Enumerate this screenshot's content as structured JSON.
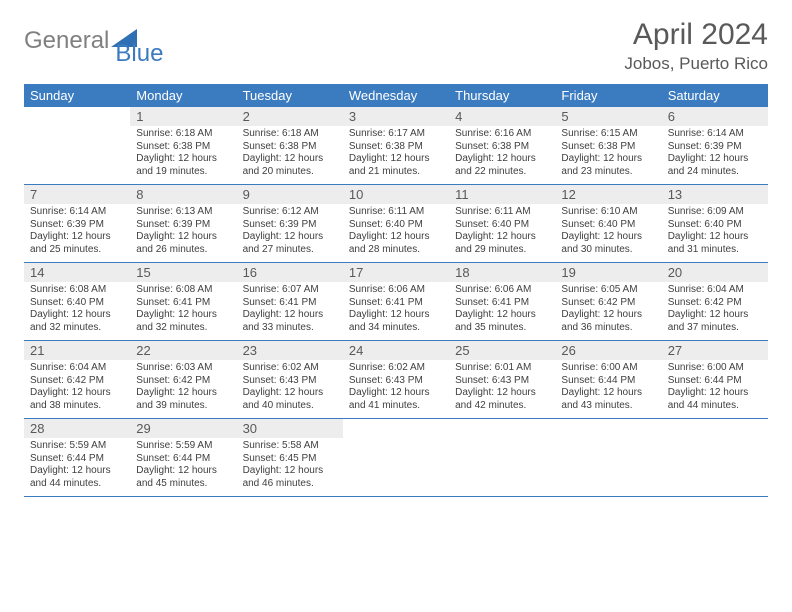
{
  "brand": {
    "text1": "General",
    "text2": "Blue"
  },
  "title": "April 2024",
  "location": "Jobos, Puerto Rico",
  "colors": {
    "header_bg": "#3b7bbf",
    "header_text": "#ffffff",
    "daynum_bg": "#ededed",
    "text_gray": "#595959",
    "body_text": "#404040",
    "rule": "#3b7bbf"
  },
  "daysOfWeek": [
    "Sunday",
    "Monday",
    "Tuesday",
    "Wednesday",
    "Thursday",
    "Friday",
    "Saturday"
  ],
  "weeks": [
    [
      {
        "n": "",
        "sunrise": "",
        "sunset": "",
        "daylight": ""
      },
      {
        "n": "1",
        "sunrise": "6:18 AM",
        "sunset": "6:38 PM",
        "daylight": "12 hours and 19 minutes."
      },
      {
        "n": "2",
        "sunrise": "6:18 AM",
        "sunset": "6:38 PM",
        "daylight": "12 hours and 20 minutes."
      },
      {
        "n": "3",
        "sunrise": "6:17 AM",
        "sunset": "6:38 PM",
        "daylight": "12 hours and 21 minutes."
      },
      {
        "n": "4",
        "sunrise": "6:16 AM",
        "sunset": "6:38 PM",
        "daylight": "12 hours and 22 minutes."
      },
      {
        "n": "5",
        "sunrise": "6:15 AM",
        "sunset": "6:38 PM",
        "daylight": "12 hours and 23 minutes."
      },
      {
        "n": "6",
        "sunrise": "6:14 AM",
        "sunset": "6:39 PM",
        "daylight": "12 hours and 24 minutes."
      }
    ],
    [
      {
        "n": "7",
        "sunrise": "6:14 AM",
        "sunset": "6:39 PM",
        "daylight": "12 hours and 25 minutes."
      },
      {
        "n": "8",
        "sunrise": "6:13 AM",
        "sunset": "6:39 PM",
        "daylight": "12 hours and 26 minutes."
      },
      {
        "n": "9",
        "sunrise": "6:12 AM",
        "sunset": "6:39 PM",
        "daylight": "12 hours and 27 minutes."
      },
      {
        "n": "10",
        "sunrise": "6:11 AM",
        "sunset": "6:40 PM",
        "daylight": "12 hours and 28 minutes."
      },
      {
        "n": "11",
        "sunrise": "6:11 AM",
        "sunset": "6:40 PM",
        "daylight": "12 hours and 29 minutes."
      },
      {
        "n": "12",
        "sunrise": "6:10 AM",
        "sunset": "6:40 PM",
        "daylight": "12 hours and 30 minutes."
      },
      {
        "n": "13",
        "sunrise": "6:09 AM",
        "sunset": "6:40 PM",
        "daylight": "12 hours and 31 minutes."
      }
    ],
    [
      {
        "n": "14",
        "sunrise": "6:08 AM",
        "sunset": "6:40 PM",
        "daylight": "12 hours and 32 minutes."
      },
      {
        "n": "15",
        "sunrise": "6:08 AM",
        "sunset": "6:41 PM",
        "daylight": "12 hours and 32 minutes."
      },
      {
        "n": "16",
        "sunrise": "6:07 AM",
        "sunset": "6:41 PM",
        "daylight": "12 hours and 33 minutes."
      },
      {
        "n": "17",
        "sunrise": "6:06 AM",
        "sunset": "6:41 PM",
        "daylight": "12 hours and 34 minutes."
      },
      {
        "n": "18",
        "sunrise": "6:06 AM",
        "sunset": "6:41 PM",
        "daylight": "12 hours and 35 minutes."
      },
      {
        "n": "19",
        "sunrise": "6:05 AM",
        "sunset": "6:42 PM",
        "daylight": "12 hours and 36 minutes."
      },
      {
        "n": "20",
        "sunrise": "6:04 AM",
        "sunset": "6:42 PM",
        "daylight": "12 hours and 37 minutes."
      }
    ],
    [
      {
        "n": "21",
        "sunrise": "6:04 AM",
        "sunset": "6:42 PM",
        "daylight": "12 hours and 38 minutes."
      },
      {
        "n": "22",
        "sunrise": "6:03 AM",
        "sunset": "6:42 PM",
        "daylight": "12 hours and 39 minutes."
      },
      {
        "n": "23",
        "sunrise": "6:02 AM",
        "sunset": "6:43 PM",
        "daylight": "12 hours and 40 minutes."
      },
      {
        "n": "24",
        "sunrise": "6:02 AM",
        "sunset": "6:43 PM",
        "daylight": "12 hours and 41 minutes."
      },
      {
        "n": "25",
        "sunrise": "6:01 AM",
        "sunset": "6:43 PM",
        "daylight": "12 hours and 42 minutes."
      },
      {
        "n": "26",
        "sunrise": "6:00 AM",
        "sunset": "6:44 PM",
        "daylight": "12 hours and 43 minutes."
      },
      {
        "n": "27",
        "sunrise": "6:00 AM",
        "sunset": "6:44 PM",
        "daylight": "12 hours and 44 minutes."
      }
    ],
    [
      {
        "n": "28",
        "sunrise": "5:59 AM",
        "sunset": "6:44 PM",
        "daylight": "12 hours and 44 minutes."
      },
      {
        "n": "29",
        "sunrise": "5:59 AM",
        "sunset": "6:44 PM",
        "daylight": "12 hours and 45 minutes."
      },
      {
        "n": "30",
        "sunrise": "5:58 AM",
        "sunset": "6:45 PM",
        "daylight": "12 hours and 46 minutes."
      },
      {
        "n": "",
        "sunrise": "",
        "sunset": "",
        "daylight": ""
      },
      {
        "n": "",
        "sunrise": "",
        "sunset": "",
        "daylight": ""
      },
      {
        "n": "",
        "sunrise": "",
        "sunset": "",
        "daylight": ""
      },
      {
        "n": "",
        "sunrise": "",
        "sunset": "",
        "daylight": ""
      }
    ]
  ],
  "labels": {
    "sunrise": "Sunrise:",
    "sunset": "Sunset:",
    "daylight": "Daylight:"
  }
}
